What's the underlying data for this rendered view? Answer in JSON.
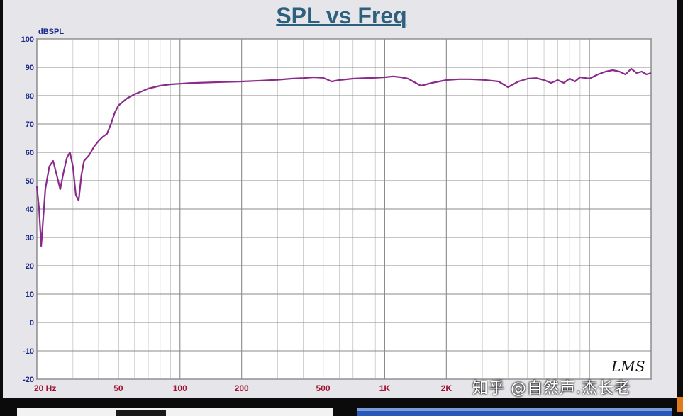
{
  "chart_data": {
    "type": "line",
    "title": "SPL vs Freq",
    "ylabel": "dBSPL",
    "xscale": "log",
    "xlim": [
      20,
      20000
    ],
    "ylim": [
      -20,
      100
    ],
    "grid": true,
    "y_ticks": [
      "100",
      "90",
      "80",
      "70",
      "60",
      "50",
      "40",
      "30",
      "20",
      "10",
      "0",
      "-10",
      "-20"
    ],
    "y_tick_values": [
      100,
      90,
      80,
      70,
      60,
      50,
      40,
      30,
      20,
      10,
      0,
      -10,
      -20
    ],
    "x_ticks": [
      {
        "label": "20 Hz",
        "value": 20
      },
      {
        "label": "50",
        "value": 50
      },
      {
        "label": "100",
        "value": 100
      },
      {
        "label": "200",
        "value": 200
      },
      {
        "label": "500",
        "value": 500
      },
      {
        "label": "1K",
        "value": 1000
      },
      {
        "label": "2K",
        "value": 2000
      }
    ],
    "line_color": "#8a2a8a",
    "series": [
      {
        "x": [
          20,
          20.5,
          21,
          22,
          23,
          24,
          25,
          26,
          27,
          28,
          29,
          30,
          31,
          32,
          33,
          34,
          36,
          38,
          40,
          42,
          44,
          46,
          48,
          50,
          52,
          55,
          60,
          65,
          70,
          80,
          90,
          100,
          110,
          130,
          160,
          200,
          250,
          300,
          350,
          400,
          450,
          500,
          550,
          600,
          700,
          800,
          900,
          1000,
          1100,
          1200,
          1300,
          1500,
          1700,
          2000,
          2300,
          2600,
          3000,
          3300,
          3600,
          4000,
          4500,
          5000,
          5500,
          6000,
          6500,
          7000,
          7500,
          8000,
          8500,
          9000,
          10000,
          11000,
          12000,
          13000,
          14000,
          15000,
          16000,
          17000,
          18000,
          19000,
          20000
        ],
        "y": [
          48,
          40,
          27,
          47,
          55,
          57,
          52,
          47,
          53,
          58,
          60,
          55,
          45,
          43,
          52,
          57,
          59,
          62,
          64,
          65.5,
          66.5,
          70,
          74,
          76.5,
          77.5,
          79,
          80.5,
          81.5,
          82.5,
          83.5,
          84,
          84.2,
          84.4,
          84.6,
          84.8,
          85,
          85.3,
          85.6,
          86,
          86.2,
          86.5,
          86.3,
          85,
          85.5,
          86,
          86.2,
          86.3,
          86.5,
          86.8,
          86.5,
          86,
          83.5,
          84.5,
          85.5,
          85.8,
          85.8,
          85.6,
          85.3,
          85,
          83,
          85,
          86,
          86.2,
          85.5,
          84.5,
          85.5,
          84.5,
          86,
          85,
          86.5,
          86,
          87.5,
          88.5,
          89,
          88.5,
          87.5,
          89.5,
          88,
          88.5,
          87.5,
          88
        ]
      }
    ]
  },
  "logo_text": "LMS",
  "watermark": "知乎 @自然声.杰长老"
}
